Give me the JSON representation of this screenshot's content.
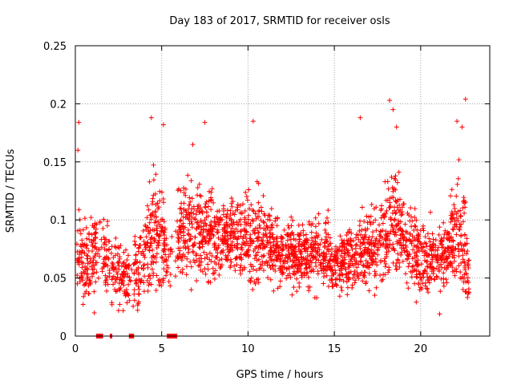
{
  "chart_data": {
    "type": "scatter",
    "title": "Day 183 of 2017, SRMTID for receiver osls",
    "xlabel": "GPS time / hours",
    "ylabel": "SRMTID / TECUs",
    "xlim": [
      0,
      24
    ],
    "ylim": [
      0,
      0.25
    ],
    "xticks": [
      0,
      5,
      10,
      15,
      20
    ],
    "xtick_labels": [
      "0",
      "5",
      "10",
      "15",
      "20"
    ],
    "yticks": [
      0,
      0.05,
      0.1,
      0.15,
      0.2,
      0.25
    ],
    "ytick_labels": [
      "0",
      "0.05",
      "0.1",
      "0.15",
      "0.2",
      "0.25"
    ],
    "grid": true,
    "marker": "+",
    "color": "#ff0000",
    "series": [
      {
        "name": "SRMTID",
        "envelope_hours": [
          0,
          0.5,
          1,
          1.5,
          2,
          2.5,
          3,
          3.5,
          4,
          4.5,
          5,
          5.5,
          6,
          6.5,
          7,
          7.5,
          8,
          8.5,
          9,
          9.5,
          10,
          10.5,
          11,
          11.5,
          12,
          12.5,
          13,
          13.5,
          14,
          14.5,
          15,
          15.5,
          16,
          16.5,
          17,
          17.5,
          18,
          18.5,
          19,
          19.5,
          20,
          20.5,
          21,
          21.5,
          22,
          22.5,
          22.8
        ],
        "envelope_mean": [
          0.08,
          0.06,
          0.07,
          0.075,
          0.06,
          0.055,
          0.05,
          0.055,
          0.065,
          0.09,
          0.085,
          0.06,
          0.085,
          0.09,
          0.095,
          0.09,
          0.085,
          0.085,
          0.09,
          0.085,
          0.08,
          0.085,
          0.08,
          0.075,
          0.07,
          0.07,
          0.07,
          0.07,
          0.075,
          0.075,
          0.065,
          0.065,
          0.065,
          0.07,
          0.075,
          0.08,
          0.09,
          0.1,
          0.085,
          0.075,
          0.07,
          0.065,
          0.07,
          0.07,
          0.09,
          0.085,
          0.05
        ],
        "envelope_spread": [
          0.035,
          0.03,
          0.03,
          0.025,
          0.025,
          0.02,
          0.02,
          0.025,
          0.03,
          0.045,
          0.04,
          0.025,
          0.035,
          0.04,
          0.035,
          0.03,
          0.03,
          0.03,
          0.03,
          0.03,
          0.035,
          0.035,
          0.03,
          0.025,
          0.025,
          0.025,
          0.025,
          0.025,
          0.025,
          0.025,
          0.02,
          0.02,
          0.025,
          0.025,
          0.03,
          0.035,
          0.04,
          0.04,
          0.035,
          0.03,
          0.03,
          0.025,
          0.025,
          0.03,
          0.04,
          0.04,
          0.02
        ],
        "peak_points": [
          {
            "x": 0.2,
            "y": 0.184
          },
          {
            "x": 0.15,
            "y": 0.16
          },
          {
            "x": 4.4,
            "y": 0.188
          },
          {
            "x": 5.1,
            "y": 0.182
          },
          {
            "x": 6.8,
            "y": 0.165
          },
          {
            "x": 7.5,
            "y": 0.184
          },
          {
            "x": 10.3,
            "y": 0.185
          },
          {
            "x": 16.5,
            "y": 0.188
          },
          {
            "x": 18.2,
            "y": 0.203
          },
          {
            "x": 18.4,
            "y": 0.195
          },
          {
            "x": 18.6,
            "y": 0.18
          },
          {
            "x": 22.1,
            "y": 0.185
          },
          {
            "x": 22.6,
            "y": 0.204
          },
          {
            "x": 22.4,
            "y": 0.18
          },
          {
            "x": 1.1,
            "y": 0.02
          },
          {
            "x": 2.5,
            "y": 0.022
          },
          {
            "x": 21.1,
            "y": 0.019
          }
        ]
      }
    ],
    "gap_markers": [
      {
        "start": 1.2,
        "end": 1.6
      },
      {
        "start": 2.0,
        "end": 2.1
      },
      {
        "start": 3.1,
        "end": 3.4
      },
      {
        "start": 5.3,
        "end": 5.9
      }
    ]
  }
}
